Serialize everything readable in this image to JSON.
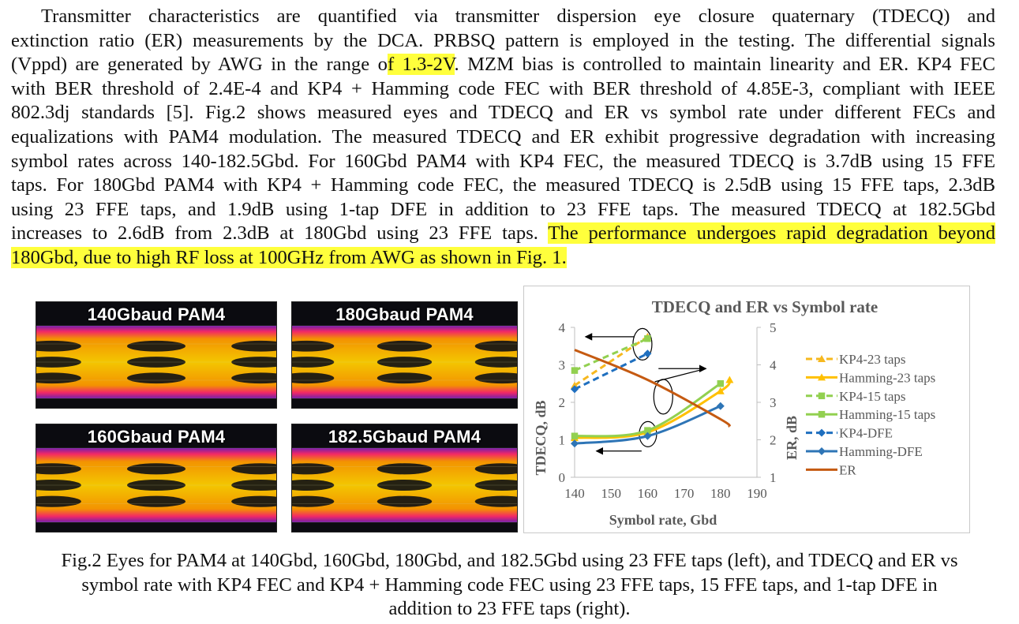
{
  "paragraph": {
    "l1": "Transmitter characteristics are quantified via transmitter dispersion eye closure quaternary (TDECQ) and",
    "l2a": "extinction ratio (ER) measurements by the DCA. PRBSQ pattern is employed in the testing. The differential signals",
    "l3a": "(Vppd) are generated by AWG in the range o",
    "l3hl": "f 1.3-2V",
    "l3b": ". MZM bias is controlled to maintain linearity and ER. KP4 FEC",
    "l4": "with BER threshold of 2.4E-4 and KP4 + Hamming code FEC with BER threshold of 4.85E-3, compliant with IEEE",
    "l5": "802.3dj standards [5]. Fig.2 shows measured eyes and TDECQ and ER vs symbol rate under different FECs and",
    "l6": "equalizations with PAM4 modulation. The measured TDECQ and ER exhibit progressive degradation with increasing",
    "l7": "symbol rates across 140-182.5Gbd. For 160Gbd PAM4 with KP4 FEC, the measured TDECQ is 3.7dB using 15 FFE",
    "l8": "taps. For 180Gbd PAM4 with KP4 + Hamming code FEC, the measured TDECQ is 2.5dB using 15 FFE taps, 2.3dB",
    "l9": "using 23 FFE taps, and 1.9dB using 1-tap DFE in addition to 23 FFE taps. The measured TDECQ at 182.5Gbd",
    "l10a": "increases to 2.6dB from 2.3dB at 180Gbd using 23 FFE taps. ",
    "l10hl": "The performance undergoes rapid degradation beyond",
    "l11hl": "180Gbd, due to high RF loss at 100GHz from AWG as shown in Fig. 1."
  },
  "eyes": [
    {
      "label": "140Gbaud PAM4"
    },
    {
      "label": "180Gbaud PAM4"
    },
    {
      "label": "160Gbaud PAM4"
    },
    {
      "label": "182.5Gbaud PAM4"
    }
  ],
  "caption": {
    "l1": "Fig.2 Eyes for PAM4 at 140Gbd, 160Gbd, 180Gbd, and 182.5Gbd using 23 FFE taps (left), and TDECQ and ER vs",
    "l2": "symbol rate with KP4 FEC and KP4 + Hamming code FEC using 23 FFE taps, 15 FFE taps, and 1-tap DFE in",
    "l3": "addition to 23 FFE taps (right)."
  },
  "colors": {
    "highlight": "#ffff3c",
    "kp4_23": "#f6b81f",
    "hamming_23": "#ffc000",
    "kp4_15": "#92d050",
    "hamming_15": "#92d050",
    "kp4_dfe": "#1f6fbf",
    "hamming_dfe": "#2e75b6",
    "er": "#c55a11"
  },
  "chart_data": {
    "type": "line",
    "title": "TDECQ and ER vs Symbol rate",
    "xlabel": "Symbol rate, Gbd",
    "ylabel": "TDECQ, dB",
    "y2label": "ER, dB",
    "xlim": [
      140,
      190
    ],
    "ylim": [
      0,
      4
    ],
    "y2lim": [
      1,
      5
    ],
    "x_ticks": [
      "140",
      "150",
      "160",
      "170",
      "180",
      "190"
    ],
    "y_ticks": [
      "0",
      "1",
      "2",
      "3",
      "4"
    ],
    "y2_ticks": [
      "1",
      "2",
      "3",
      "4",
      "5"
    ],
    "grid": false,
    "legend_position": "right",
    "series": [
      {
        "name": "KP4-23 taps",
        "axis": "left",
        "style": "dashed",
        "marker": "triangle",
        "color": "#f6b81f",
        "x": [
          140,
          160
        ],
        "y": [
          2.45,
          3.75
        ]
      },
      {
        "name": "Hamming-23 taps",
        "axis": "left",
        "style": "solid",
        "marker": "triangle",
        "color": "#ffc000",
        "x": [
          140,
          160,
          180,
          182.5
        ],
        "y": [
          1.05,
          1.2,
          2.3,
          2.6
        ]
      },
      {
        "name": "KP4-15 taps",
        "axis": "left",
        "style": "dashed",
        "marker": "square",
        "color": "#92d050",
        "x": [
          140,
          160
        ],
        "y": [
          2.85,
          3.7
        ]
      },
      {
        "name": "Hamming-15 taps",
        "axis": "left",
        "style": "solid",
        "marker": "square",
        "color": "#92d050",
        "x": [
          140,
          160,
          180
        ],
        "y": [
          1.1,
          1.25,
          2.5
        ]
      },
      {
        "name": "KP4-DFE",
        "axis": "left",
        "style": "dashed",
        "marker": "diamond",
        "color": "#1f6fbf",
        "x": [
          140,
          160
        ],
        "y": [
          2.35,
          3.3
        ]
      },
      {
        "name": "Hamming-DFE",
        "axis": "left",
        "style": "solid",
        "marker": "diamond",
        "color": "#2e75b6",
        "x": [
          140,
          160,
          180
        ],
        "y": [
          0.9,
          1.1,
          1.9
        ]
      },
      {
        "name": "ER",
        "axis": "right",
        "style": "solid",
        "marker": "none",
        "color": "#c55a11",
        "x": [
          140,
          160,
          180,
          182.5
        ],
        "y": [
          4.4,
          3.6,
          2.55,
          2.35
        ]
      }
    ]
  }
}
